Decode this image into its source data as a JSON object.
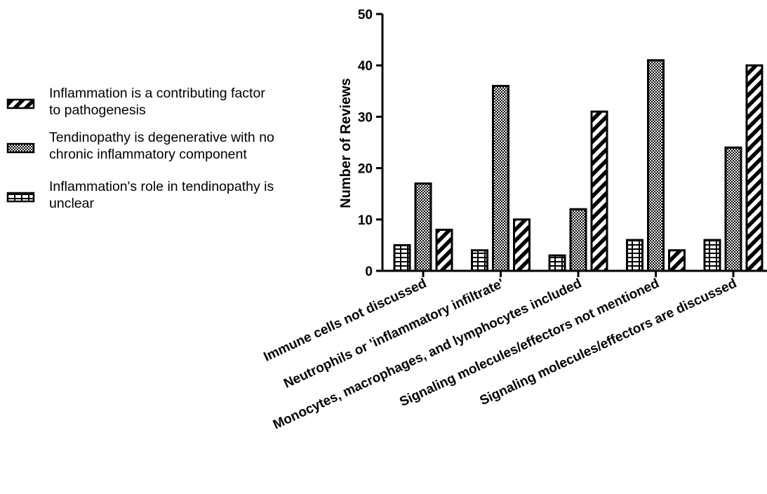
{
  "chart_data": {
    "type": "bar",
    "title": "",
    "xlabel": "",
    "ylabel": "Number of Reviews",
    "ylim": [
      0,
      50
    ],
    "yticks": [
      0,
      10,
      20,
      30,
      40,
      50
    ],
    "grid": false,
    "legend_position": "left",
    "categories": [
      "Immune cells not discussed",
      "Neutrophils or 'inflammatory infiltrate'",
      "Monocytes, macrophages, and lymphocytes included",
      "Signaling molecules/effectors not mentioned",
      "Signaling molecules/effectors are discussed"
    ],
    "series": [
      {
        "name": "Inflammation's role in tendinopathy is unclear",
        "pattern": "brick",
        "values": [
          5,
          4,
          3,
          6,
          6
        ]
      },
      {
        "name": "Tendinopathy is degenerative with no chronic inflammatory component",
        "pattern": "checker",
        "values": [
          17,
          36,
          12,
          41,
          24
        ]
      },
      {
        "name": "Inflammation is a contributing factor to pathogenesis",
        "pattern": "diagonal",
        "values": [
          8,
          10,
          31,
          4,
          40
        ]
      }
    ],
    "legend": [
      {
        "pattern": "diagonal",
        "lines": [
          "Inflammation is a contributing factor",
          "to pathogenesis"
        ]
      },
      {
        "pattern": "checker",
        "lines": [
          "Tendinopathy is degenerative with no",
          "chronic inflammatory component"
        ]
      },
      {
        "pattern": "brick",
        "lines": [
          "Inflammation's role in tendinopathy is",
          "unclear"
        ]
      }
    ],
    "colors": {
      "ink": "#000000",
      "background": "#ffffff"
    }
  }
}
